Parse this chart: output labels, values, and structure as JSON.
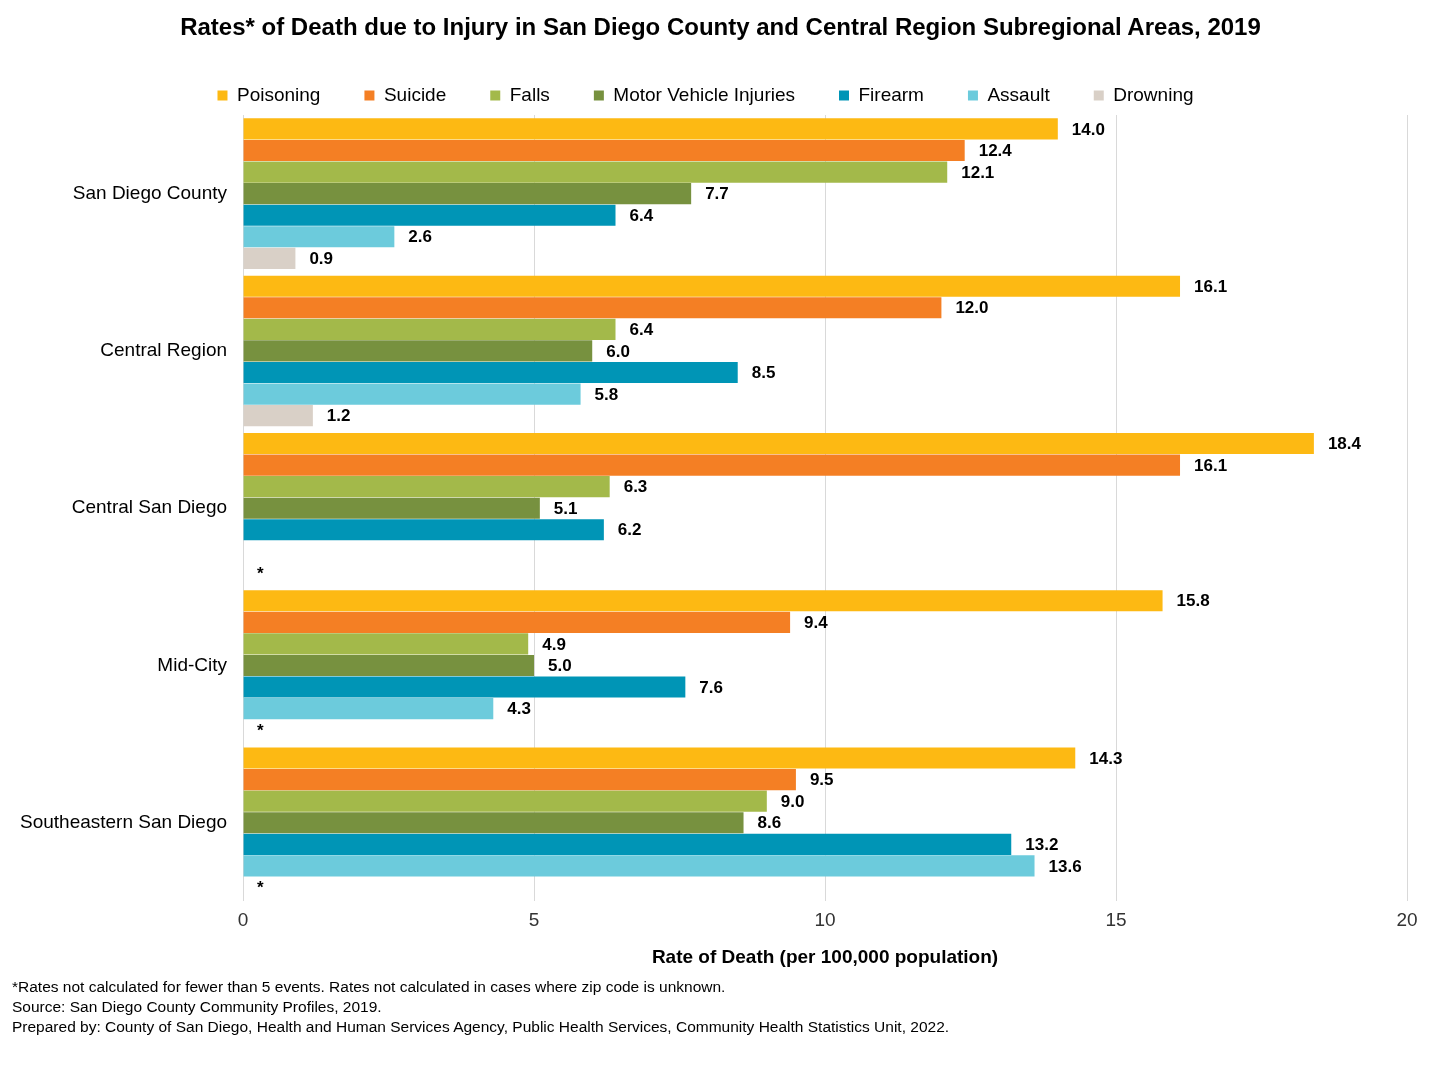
{
  "chart_data": {
    "type": "bar",
    "orientation": "horizontal",
    "title": "Rates* of Death due to Injury in San Diego County and Central Region Subregional Areas, 2019",
    "xlabel": "Rate of Death (per 100,000 population)",
    "categories": [
      "San Diego County",
      "Central Region",
      "Central San Diego",
      "Mid-City",
      "Southeastern San Diego"
    ],
    "series": [
      {
        "name": "Poisoning",
        "color": "#fdb913",
        "values": [
          14.0,
          16.1,
          18.4,
          15.8,
          14.3
        ],
        "value_labels": [
          "14.0",
          "16.1",
          "18.4",
          "15.8",
          "14.3"
        ]
      },
      {
        "name": "Suicide",
        "color": "#f47f24",
        "values": [
          12.4,
          12.0,
          16.1,
          9.4,
          9.5
        ],
        "value_labels": [
          "12.4",
          "12.0",
          "16.1",
          "9.4",
          "9.5"
        ]
      },
      {
        "name": "Falls",
        "color": "#a3b94a",
        "values": [
          12.1,
          6.4,
          6.3,
          4.9,
          9.0
        ],
        "value_labels": [
          "12.1",
          "6.4",
          "6.3",
          "4.9",
          "9.0"
        ]
      },
      {
        "name": "Motor Vehicle Injuries",
        "color": "#77913f",
        "values": [
          7.7,
          6.0,
          5.1,
          5.0,
          8.6
        ],
        "value_labels": [
          "7.7",
          "6.0",
          "5.1",
          "5.0",
          "8.6"
        ]
      },
      {
        "name": "Firearm",
        "color": "#0095b6",
        "values": [
          6.4,
          8.5,
          6.2,
          7.6,
          13.2
        ],
        "value_labels": [
          "6.4",
          "8.5",
          "6.2",
          "7.6",
          "13.2"
        ]
      },
      {
        "name": "Assault",
        "color": "#6ccbdc",
        "values": [
          2.6,
          5.8,
          null,
          4.3,
          13.6
        ],
        "value_labels": [
          "2.6",
          "5.8",
          null,
          "4.3",
          "13.6"
        ]
      },
      {
        "name": "Drowning",
        "color": "#d9d0c7",
        "values": [
          0.9,
          1.2,
          null,
          null,
          null
        ],
        "value_labels": [
          "0.9",
          "1.2",
          "*",
          "*",
          "*"
        ]
      }
    ],
    "xlim": [
      0,
      20
    ],
    "xticks": [
      0,
      5,
      10,
      15,
      20
    ],
    "grid": "x",
    "legend": "top",
    "annotations": [
      "*Rates not calculated for fewer than 5 events. Rates not calculated in cases where zip code is unknown.",
      "Source: San Diego County Community Profiles, 2019.",
      "Prepared by: County of San Diego, Health and Human Services Agency, Public Health Services, Community Health Statistics Unit, 2022."
    ]
  }
}
